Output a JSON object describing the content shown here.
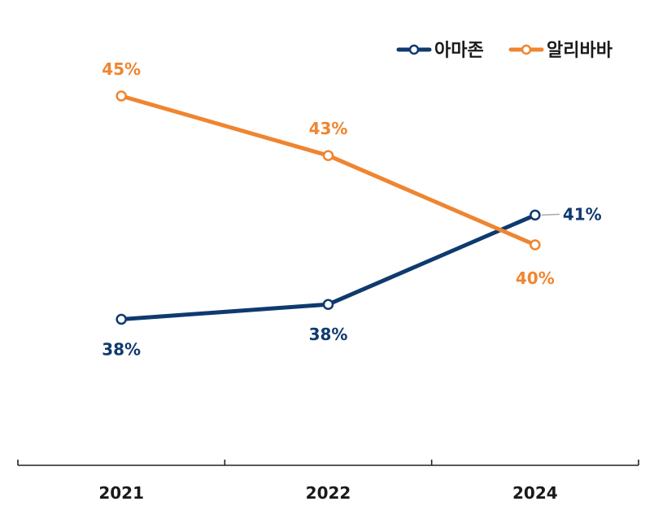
{
  "chart_data": {
    "type": "line",
    "title": "",
    "xlabel": "",
    "ylabel": "",
    "categories": [
      "2021",
      "2022",
      "2024"
    ],
    "ylim": [
      30,
      50
    ],
    "grid": false,
    "legend_position": "top-right",
    "series": [
      {
        "name": "아마존",
        "color": "#0f3a6e",
        "values": [
          37.5,
          38.0,
          41.0
        ],
        "labels": [
          "38%",
          "38%",
          "41%"
        ]
      },
      {
        "name": "알리바바",
        "color": "#ef8530",
        "values": [
          45.0,
          43.0,
          40.0
        ],
        "labels": [
          "45%",
          "43%",
          "40%"
        ]
      }
    ]
  }
}
